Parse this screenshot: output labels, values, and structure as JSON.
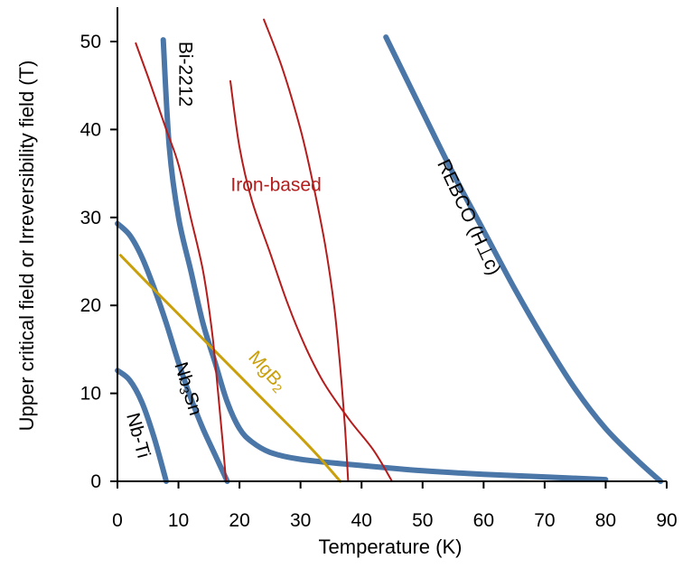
{
  "chart_data": {
    "type": "line",
    "xlabel": "Temperature (K)",
    "ylabel": "Upper critical field or Irreversibility field (T)",
    "xlim": [
      0,
      90
    ],
    "ylim": [
      0,
      50
    ],
    "xticks": [
      0,
      10,
      20,
      30,
      40,
      50,
      60,
      70,
      80,
      90
    ],
    "yticks": [
      0,
      10,
      20,
      30,
      40,
      50
    ],
    "grid": false,
    "series": [
      {
        "name": "Nb-Ti",
        "color": "#4a76a8",
        "width": 6,
        "points": [
          [
            0,
            12.6
          ],
          [
            2,
            11.5
          ],
          [
            4,
            9
          ],
          [
            6,
            5
          ],
          [
            8,
            0
          ]
        ]
      },
      {
        "name": "Nb3Sn",
        "color": "#4a76a8",
        "width": 6,
        "points": [
          [
            0,
            29.3
          ],
          [
            2,
            28
          ],
          [
            4,
            25.5
          ],
          [
            6,
            22
          ],
          [
            8,
            18
          ],
          [
            10,
            13.5
          ],
          [
            12,
            9.5
          ],
          [
            14,
            6
          ],
          [
            16,
            3
          ],
          [
            18,
            0
          ]
        ]
      },
      {
        "name": "Bi-2212",
        "color": "#4a76a8",
        "width": 6,
        "points": [
          [
            7.5,
            50.2
          ],
          [
            8.5,
            38
          ],
          [
            10,
            30
          ],
          [
            12,
            24
          ],
          [
            14,
            18
          ],
          [
            16,
            13.5
          ],
          [
            18,
            9
          ],
          [
            20,
            6
          ],
          [
            22,
            4.5
          ],
          [
            25,
            3.3
          ],
          [
            30,
            2.5
          ],
          [
            40,
            1.8
          ],
          [
            50,
            1.2
          ],
          [
            60,
            0.8
          ],
          [
            70,
            0.5
          ],
          [
            80,
            0.2
          ]
        ]
      },
      {
        "name": "REBCO (H⊥c)",
        "color": "#4a76a8",
        "width": 6,
        "points": [
          [
            44,
            50.5
          ],
          [
            50,
            42
          ],
          [
            55,
            35
          ],
          [
            60,
            28.5
          ],
          [
            65,
            22
          ],
          [
            70,
            16
          ],
          [
            75,
            10.5
          ],
          [
            80,
            6
          ],
          [
            85,
            2.5
          ],
          [
            89,
            0
          ]
        ]
      },
      {
        "name": "MgB2",
        "color": "#c9a00c",
        "width": 3,
        "points": [
          [
            0.5,
            25.7
          ],
          [
            5,
            22.5
          ],
          [
            10,
            19
          ],
          [
            15,
            15.5
          ],
          [
            20,
            12
          ],
          [
            25,
            8.5
          ],
          [
            30,
            5
          ],
          [
            33,
            2.8
          ],
          [
            36.5,
            0
          ]
        ]
      },
      {
        "name": "Iron-based A",
        "color": "#b51c1c",
        "width": 2,
        "points": [
          [
            3,
            49.8
          ],
          [
            5,
            46
          ],
          [
            8,
            40
          ],
          [
            10,
            36
          ],
          [
            12,
            30
          ],
          [
            14,
            24
          ],
          [
            15.5,
            17
          ],
          [
            16.5,
            10
          ],
          [
            17.3,
            4
          ],
          [
            17.8,
            0
          ]
        ]
      },
      {
        "name": "Iron-based B",
        "color": "#b51c1c",
        "width": 2,
        "points": [
          [
            18.5,
            45.5
          ],
          [
            20,
            38
          ],
          [
            22,
            32
          ],
          [
            25,
            26
          ],
          [
            28,
            20
          ],
          [
            31,
            15
          ],
          [
            34,
            11
          ],
          [
            38,
            7
          ],
          [
            42,
            3.5
          ],
          [
            45,
            0
          ]
        ]
      },
      {
        "name": "Iron-based C",
        "color": "#b51c1c",
        "width": 2,
        "points": [
          [
            24,
            52.5
          ],
          [
            27,
            47
          ],
          [
            30,
            40
          ],
          [
            32,
            34
          ],
          [
            34,
            27
          ],
          [
            35.5,
            20
          ],
          [
            36.5,
            13
          ],
          [
            37.3,
            6
          ],
          [
            37.8,
            0
          ]
        ]
      }
    ],
    "annotations": [
      {
        "text": "Bi-2212",
        "x": 11,
        "y": 46.3,
        "rotate": 90,
        "color": "#000000"
      },
      {
        "text": "Iron-based",
        "x": 26,
        "y": 33.6,
        "rotate": 0,
        "color": "#b51c1c"
      },
      {
        "text": "REBCO (H⊥c)",
        "x": 57.5,
        "y": 30,
        "rotate": 65,
        "color": "#000000"
      },
      {
        "text": "MgB",
        "sub": "2",
        "x": 24.5,
        "y": 12.5,
        "rotate": 48,
        "color": "#c9a00c"
      },
      {
        "text": "Nb",
        "sub": "3",
        "tail": "Sn",
        "x": 11.5,
        "y": 10.5,
        "rotate": 73,
        "color": "#000000"
      },
      {
        "text": "Nb-Ti",
        "x": 3.3,
        "y": 5.2,
        "rotate": 75,
        "color": "#000000"
      }
    ]
  }
}
